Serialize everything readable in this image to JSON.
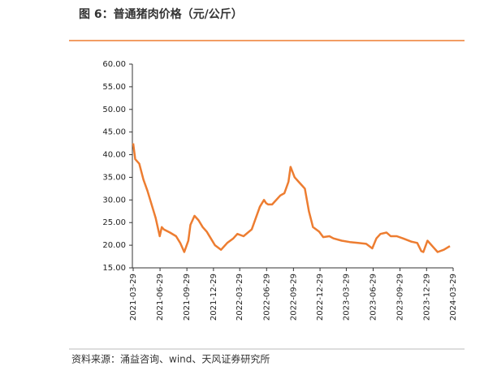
{
  "chart_data": {
    "type": "line",
    "title": "图 6：普通猪肉价格（元/公斤）",
    "source": "资料来源：涌益咨询、wind、天风证券研究所",
    "color": "#ED7D31",
    "x": [
      "2021-03-29",
      "2021-04-05",
      "2021-04-19",
      "2021-05-03",
      "2021-05-17",
      "2021-06-07",
      "2021-06-14",
      "2021-06-28",
      "2021-07-05",
      "2021-07-12",
      "2021-08-02",
      "2021-08-23",
      "2021-09-06",
      "2021-09-20",
      "2021-10-04",
      "2021-10-11",
      "2021-10-25",
      "2021-11-08",
      "2021-11-22",
      "2021-12-06",
      "2021-12-20",
      "2022-01-03",
      "2022-01-24",
      "2022-02-14",
      "2022-03-07",
      "2022-03-21",
      "2022-04-11",
      "2022-05-09",
      "2022-06-06",
      "2022-06-20",
      "2022-06-27",
      "2022-07-04",
      "2022-07-18",
      "2022-08-15",
      "2022-08-29",
      "2022-09-12",
      "2022-09-19",
      "2022-10-03",
      "2022-10-17",
      "2022-10-31",
      "2022-11-07",
      "2022-11-21",
      "2022-12-05",
      "2022-12-26",
      "2023-01-09",
      "2023-01-30",
      "2023-02-13",
      "2023-03-13",
      "2023-04-10",
      "2023-05-08",
      "2023-06-05",
      "2023-06-26",
      "2023-07-10",
      "2023-07-24",
      "2023-08-14",
      "2023-08-28",
      "2023-09-18",
      "2023-10-09",
      "2023-11-06",
      "2023-11-27",
      "2023-12-11",
      "2023-12-18",
      "2024-01-01",
      "2024-01-22",
      "2024-02-05",
      "2024-02-26",
      "2024-03-18"
    ],
    "values": [
      42.5,
      39,
      38,
      34.5,
      32,
      27.5,
      26,
      22,
      24,
      23.5,
      22.8,
      22,
      20.5,
      18.5,
      21,
      24.5,
      26.5,
      25.5,
      24,
      23,
      21.5,
      20,
      19,
      20.5,
      21.5,
      22.5,
      22,
      23.5,
      28.5,
      30,
      29.3,
      29,
      29,
      31,
      31.5,
      34,
      37.3,
      35,
      34,
      33,
      32.5,
      27.5,
      24,
      23,
      21.8,
      22,
      21.5,
      21,
      20.7,
      20.5,
      20.3,
      19.3,
      21.5,
      22.5,
      22.8,
      22,
      22,
      21.5,
      20.8,
      20.5,
      18.7,
      18.5,
      21,
      19.5,
      18.5,
      19,
      19.8
    ],
    "xlim": [
      "2021-03-29",
      "2024-03-29"
    ],
    "xticks": [
      "2021-03-29",
      "2021-06-29",
      "2021-09-29",
      "2021-12-29",
      "2022-03-29",
      "2022-06-29",
      "2022-09-29",
      "2022-12-29",
      "2023-03-29",
      "2023-06-29",
      "2023-09-29",
      "2023-12-29",
      "2024-03-29"
    ],
    "ylim": [
      15,
      60
    ],
    "yticks": [
      {
        "value": 15,
        "label": "15.00"
      },
      {
        "value": 20,
        "label": "20.00"
      },
      {
        "value": 25,
        "label": "25.00"
      },
      {
        "value": 30,
        "label": "30.00"
      },
      {
        "value": 35,
        "label": "35.00"
      },
      {
        "value": 40,
        "label": "40.00"
      },
      {
        "value": 45,
        "label": "45.00"
      },
      {
        "value": 50,
        "label": "50.00"
      },
      {
        "value": 55,
        "label": "55.00"
      },
      {
        "value": 60,
        "label": "60.00"
      }
    ]
  }
}
